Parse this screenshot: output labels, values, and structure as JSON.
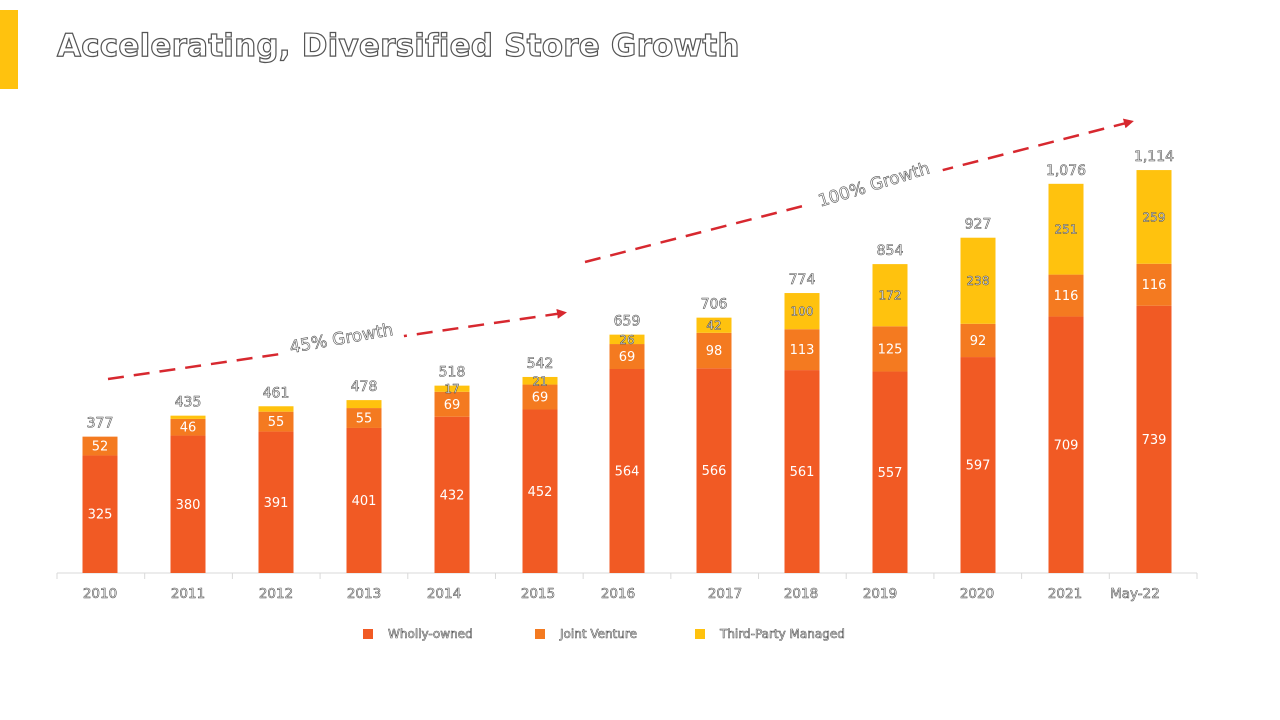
{
  "title": "Accelerating, Diversified Store Growth",
  "colors": {
    "wholly_owned": "#F15A24",
    "joint_venture": "#F47A20",
    "third_party": "#FFC20E",
    "accent": "#FFC20E",
    "arrow": "#D7282F",
    "axis": "#D9D9D9"
  },
  "chart_data": {
    "type": "bar",
    "stacked": true,
    "categories": [
      "2010",
      "2011",
      "2012",
      "2013",
      "2014",
      "2015",
      "2016",
      "2017",
      "2018",
      "2019",
      "2020",
      "2021",
      "May-22"
    ],
    "series": [
      {
        "name": "Wholly-owned",
        "values": [
          325,
          380,
          391,
          401,
          432,
          452,
          564,
          566,
          561,
          557,
          597,
          709,
          739
        ]
      },
      {
        "name": "Joint Venture",
        "values": [
          52,
          46,
          55,
          55,
          69,
          69,
          69,
          98,
          113,
          125,
          92,
          116,
          116
        ]
      },
      {
        "name": "Third-Party Managed",
        "values": [
          0,
          9,
          15,
          22,
          17,
          21,
          26,
          42,
          100,
          172,
          238,
          251,
          259
        ]
      }
    ],
    "segment_labels_shown": {
      "Wholly-owned": [
        true,
        true,
        true,
        true,
        true,
        true,
        true,
        true,
        true,
        true,
        true,
        true,
        true
      ],
      "Joint Venture": [
        true,
        true,
        true,
        true,
        true,
        true,
        true,
        true,
        true,
        true,
        true,
        true,
        true
      ],
      "Third-Party Managed": [
        false,
        false,
        false,
        false,
        true,
        true,
        true,
        true,
        true,
        true,
        true,
        true,
        true
      ]
    },
    "totals": [
      "377",
      "435",
      "461",
      "478",
      "518",
      "542",
      "659",
      "706",
      "774",
      "854",
      "927",
      "1,076",
      "1,114"
    ],
    "legend_position": "bottom",
    "grid": false,
    "annotations": [
      {
        "text": "45% Growth",
        "from": "2010",
        "to": "2015"
      },
      {
        "text": "100% Growth",
        "from": "2016",
        "to": "May-22"
      }
    ]
  }
}
